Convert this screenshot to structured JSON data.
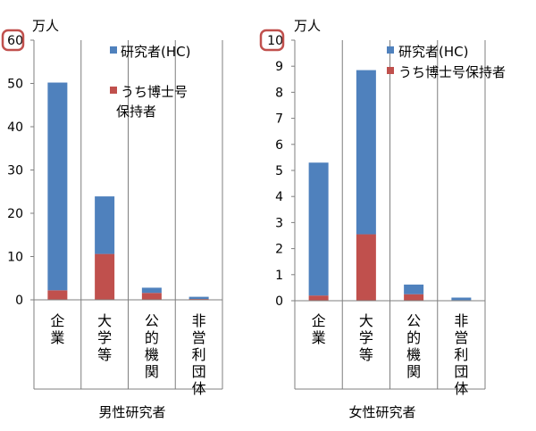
{
  "chart_data": [
    {
      "type": "bar",
      "stacked": true,
      "title": "男性研究者",
      "unit": "万人",
      "ylim": [
        0,
        60
      ],
      "yticks": [
        0,
        10,
        20,
        30,
        40,
        50,
        60
      ],
      "highlighted_tick": "60",
      "categories": [
        "企業",
        "大学等",
        "公的機関",
        "非営利団体"
      ],
      "series": [
        {
          "name": "うち博士号保持者",
          "color": "#c0504d",
          "values": [
            2.2,
            10.6,
            1.6,
            0.2
          ]
        },
        {
          "name": "研究者(HC)",
          "color": "#4f81bd",
          "values": [
            48.0,
            13.3,
            1.2,
            0.5
          ]
        }
      ],
      "totals": [
        50.2,
        23.9,
        2.8,
        0.7
      ],
      "legend": [
        {
          "label": "研究者(HC)",
          "color": "#4f81bd"
        },
        {
          "label": "うち博士号\n保持者",
          "color": "#c0504d"
        }
      ],
      "grid": true
    },
    {
      "type": "bar",
      "stacked": true,
      "title": "女性研究者",
      "unit": "万人",
      "ylim": [
        0,
        10
      ],
      "yticks": [
        0,
        1,
        2,
        3,
        4,
        5,
        6,
        7,
        8,
        9,
        10
      ],
      "highlighted_tick": "10",
      "categories": [
        "企業",
        "大学等",
        "公的機関",
        "非営利団体"
      ],
      "series": [
        {
          "name": "うち博士号保持者",
          "color": "#c0504d",
          "values": [
            0.2,
            2.55,
            0.25,
            0.02
          ]
        },
        {
          "name": "研究者(HC)",
          "color": "#4f81bd",
          "values": [
            5.1,
            6.3,
            0.37,
            0.1
          ]
        }
      ],
      "totals": [
        5.3,
        8.85,
        0.62,
        0.12
      ],
      "legend": [
        {
          "label": "研究者(HC)",
          "color": "#4f81bd"
        },
        {
          "label": "うち博士号保持者",
          "color": "#c0504d"
        }
      ],
      "grid": true
    }
  ]
}
